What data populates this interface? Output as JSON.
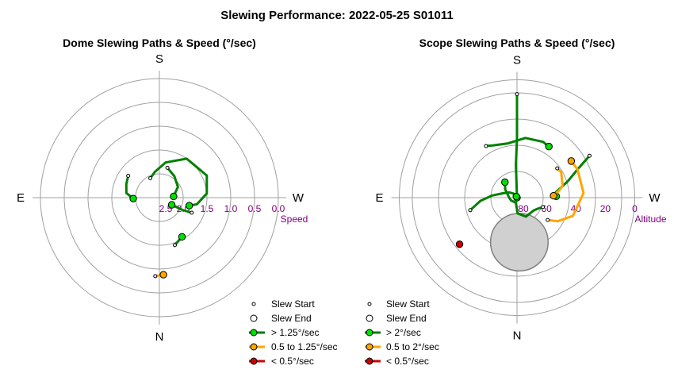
{
  "page_title": "Slewing Performance: 2022-05-25 S01011",
  "colors": {
    "fast": "#008000",
    "fast_fill": "#00e000",
    "medium": "#ffa500",
    "slow": "#cc0000",
    "ring": "#a0a0a0",
    "tick": "#800080",
    "moon_fill": "#d0d0d0"
  },
  "chart_data": [
    {
      "type": "polar-path",
      "title": "Dome Slewing Paths & Speed (°/sec)",
      "cardinals": {
        "top": "S",
        "bottom": "N",
        "left": "E",
        "right": "W"
      },
      "radial_axis": {
        "label": "Speed",
        "ticks": [
          "2.5",
          "2.0",
          "1.5",
          "1.0",
          "0.5",
          "0.0"
        ],
        "min": 0,
        "max": 2.5,
        "inverted": true,
        "rings": 5
      },
      "legend": {
        "start": "Slew Start",
        "end": "Slew End",
        "fast": "> 1.25°/sec",
        "medium": "0.5 to 1.25°/sec",
        "slow": "< 0.5°/sec"
      },
      "paths": [
        {
          "class": "fast",
          "points": [
            [
              155,
              2.05
            ],
            [
              170,
              1.95
            ],
            [
              190,
              1.75
            ],
            [
              215,
              1.5
            ],
            [
              245,
              1.4
            ],
            [
              265,
              1.5
            ],
            [
              280,
              1.7
            ],
            [
              285,
              1.85
            ]
          ]
        },
        {
          "class": "fast",
          "points": [
            [
              195,
              1.85
            ],
            [
              215,
              1.95
            ],
            [
              240,
              2.05
            ],
            [
              265,
              2.2
            ]
          ]
        },
        {
          "class": "fast",
          "points": [
            [
              125,
              1.7
            ],
            [
              112,
              1.75
            ],
            [
              98,
              1.8
            ],
            [
              88,
              1.95
            ]
          ]
        },
        {
          "class": "fast",
          "points": [
            [
              295,
              1.75
            ],
            [
              298,
              1.95
            ],
            [
              300,
              2.2
            ]
          ]
        },
        {
          "class": "fast",
          "points": [
            [
              342,
              1.45
            ],
            [
              330,
              1.55
            ]
          ]
        },
        {
          "class": "medium",
          "points": [
            [
              3,
              0.85
            ],
            [
              357,
              0.88
            ]
          ]
        }
      ]
    },
    {
      "type": "polar-path",
      "title": "Scope Slewing Paths & Speed (°/sec)",
      "cardinals": {
        "top": "S",
        "bottom": "N",
        "left": "E",
        "right": "W"
      },
      "radial_axis": {
        "label": "Altitude",
        "ticks": [
          "80",
          "60",
          "40",
          "20",
          "0"
        ],
        "min": 0,
        "max": 90,
        "inverted": true,
        "rings": 4.5
      },
      "legend": {
        "start": "Slew Start",
        "end": "Slew End",
        "fast": "> 2°/sec",
        "medium": "0.5 to 2°/sec",
        "slow": "< 0.5°/sec"
      },
      "moon": {
        "azimuth": 357,
        "altitude": 56,
        "radius_deg": 22
      },
      "paths": [
        {
          "class": "fast",
          "points": [
            [
              180,
              11
            ],
            [
              180,
              25
            ],
            [
              180,
              45
            ],
            [
              178,
              65
            ],
            [
              181,
              90
            ]
          ]
        },
        {
          "class": "fast",
          "points": [
            [
              149,
              44
            ],
            [
              155,
              46
            ],
            [
              170,
              48
            ],
            [
              188,
              44
            ],
            [
              205,
              43
            ],
            [
              212,
              44
            ]
          ]
        },
        {
          "class": "fast",
          "points": [
            [
              240,
              26
            ],
            [
              245,
              39
            ],
            [
              252,
              49
            ],
            [
              262,
              60
            ],
            [
              268,
              60
            ]
          ]
        },
        {
          "class": "fast",
          "points": [
            [
              75,
              53
            ],
            [
              85,
              62
            ],
            [
              95,
              71
            ],
            [
              108,
              79
            ],
            [
              125,
              83
            ],
            [
              140,
              86
            ],
            [
              150,
              89
            ]
          ]
        },
        {
          "class": "fast",
          "points": [
            [
              290,
              69
            ],
            [
              298,
              72
            ],
            [
              308,
              74
            ],
            [
              335,
              74
            ],
            [
              358,
              78
            ],
            [
              12,
              86
            ],
            [
              65,
              85
            ],
            [
              90,
              84
            ],
            [
              125,
              79
            ],
            [
              142,
              75
            ]
          ]
        },
        {
          "class": "medium",
          "points": [
            [
              234,
              52
            ],
            [
              240,
              51
            ],
            [
              255,
              54
            ],
            [
              260,
              57
            ],
            [
              267,
              62
            ]
          ]
        },
        {
          "class": "medium",
          "points": [
            [
              306,
              61
            ],
            [
              300,
              54
            ],
            [
              288,
              45
            ],
            [
              266,
              39
            ],
            [
              245,
              39
            ],
            [
              236,
              40
            ]
          ]
        },
        {
          "class": "slow",
          "points": [
            [
              52,
              33
            ],
            [
              51,
              33.5
            ]
          ]
        }
      ]
    }
  ]
}
